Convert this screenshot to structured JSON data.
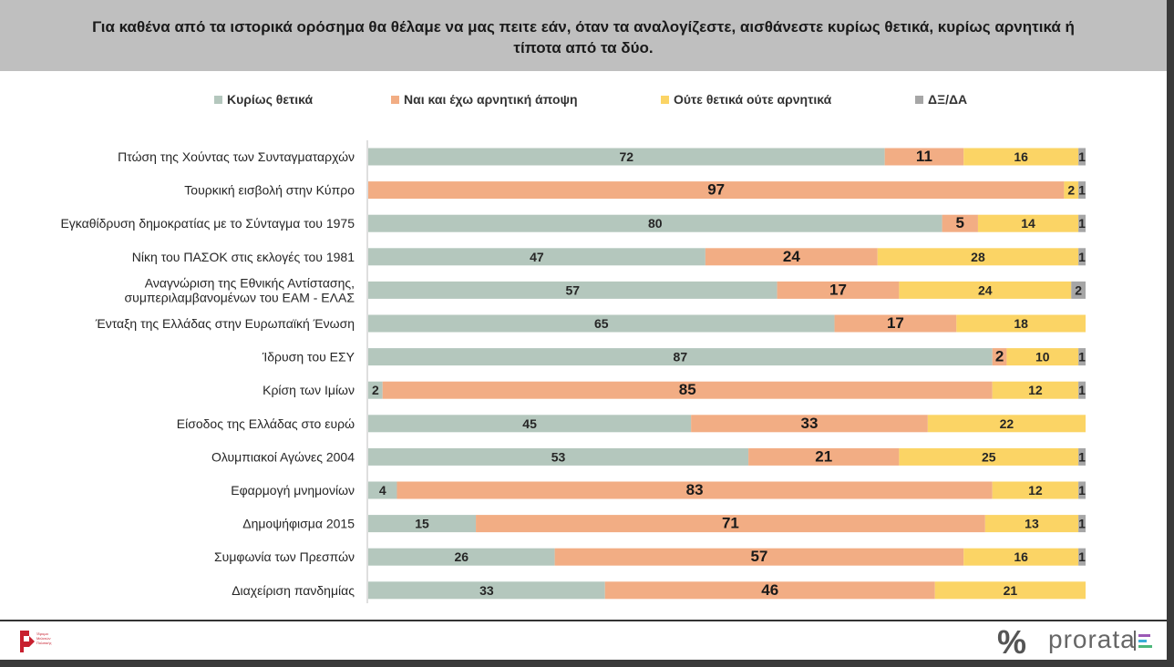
{
  "header": {
    "title": "Για καθένα από τα ιστορικά ορόσημα θα θέλαμε να μας πειτε εάν, όταν τα αναλογίζεστε, αισθάνεστε κυρίως θετικά, κυρίως αρνητικά ή\nτίποτα από τα δύο."
  },
  "legend": [
    {
      "label": "Κυρίως θετικά",
      "color": "#b4c7bd"
    },
    {
      "label": "Ναι και έχω αρνητική άποψη",
      "color": "#f2ad84"
    },
    {
      "label": "Ούτε θετικά ούτε αρνητικά",
      "color": "#fbd465"
    },
    {
      "label": "ΔΞ/ΔΑ",
      "color": "#a6a6a6"
    }
  ],
  "chart_data": {
    "type": "bar",
    "orientation": "horizontal",
    "stacked": true,
    "categories": [
      "Πτώση της Χούντας των Συνταγματαρχών",
      "Τουρκική εισβολή στην Κύπρο",
      "Εγκαθίδρυση δημοκρατίας με το Σύνταγμα του 1975",
      "Νίκη του ΠΑΣΟΚ στις εκλογές του 1981",
      "Αναγνώριση της Εθνικής Αντίστασης,\nσυμπεριλαμβανομένων του ΕΑΜ - ΕΛΑΣ",
      "Ένταξη της Ελλάδας στην Ευρωπαϊκή Ένωση",
      "Ίδρυση του ΕΣΥ",
      "Κρίση των Ιμίων",
      "Είσοδος της Ελλάδας στο ευρώ",
      "Ολυμπιακοί Αγώνες 2004",
      "Εφαρμογή μνημονίων",
      "Δημοψήφισμα 2015",
      "Συμφωνία των Πρεσπών",
      "Διαχείριση πανδημίας"
    ],
    "series": [
      {
        "name": "Κυρίως θετικά",
        "color": "#b4c7bd",
        "values": [
          72,
          0,
          80,
          47,
          57,
          65,
          87,
          2,
          45,
          53,
          4,
          15,
          26,
          33
        ]
      },
      {
        "name": "Ναι και έχω αρνητική άποψη",
        "color": "#f2ad84",
        "values": [
          11,
          97,
          5,
          24,
          17,
          17,
          2,
          85,
          33,
          21,
          83,
          71,
          57,
          46
        ]
      },
      {
        "name": "Ούτε θετικά ούτε αρνητικά",
        "color": "#fbd465",
        "values": [
          16,
          2,
          14,
          28,
          24,
          18,
          10,
          12,
          22,
          25,
          12,
          13,
          16,
          21
        ]
      },
      {
        "name": "ΔΞ/ΔΑ",
        "color": "#a6a6a6",
        "values": [
          1,
          1,
          1,
          1,
          2,
          0,
          1,
          1,
          0,
          1,
          1,
          1,
          1,
          0
        ]
      }
    ],
    "xlim": [
      0,
      100
    ],
    "legend_position": "top",
    "grid": false
  },
  "footer": {
    "left_logo_text": "Ίδρυμα\nΜελετών\nΠολιτικής",
    "pct_icon": "%",
    "brand": "prorata"
  }
}
